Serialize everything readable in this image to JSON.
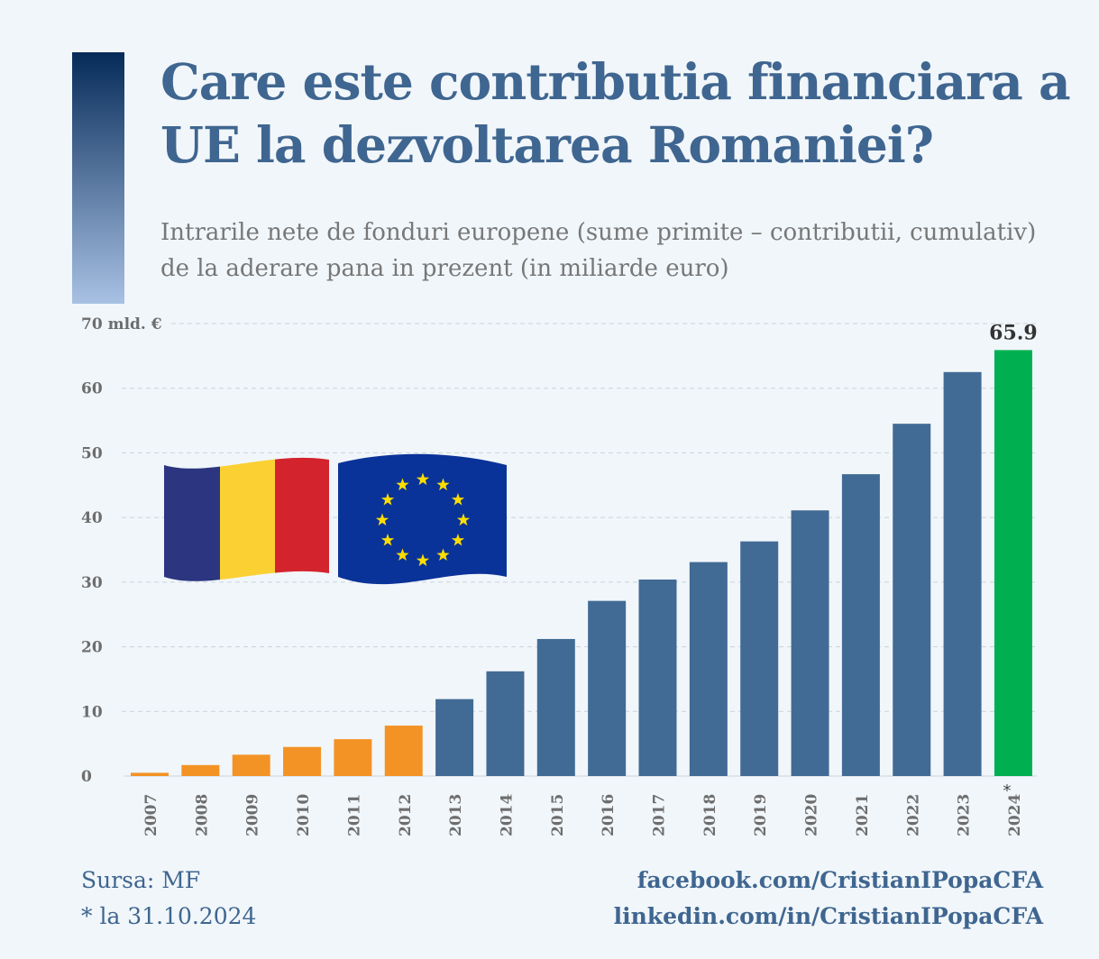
{
  "title": "Care este contributia financiara a UE la dezvoltarea Romaniei?",
  "subtitle": "Intrarile nete de fonduri europene (sume primite – contributii, cumulativ) de la aderare pana in prezent (in miliarde euro)",
  "footer": {
    "source": "Sursa: MF",
    "note": "* la 31.10.2024",
    "facebook": "facebook.com/CristianIPopaCFA",
    "linkedin": "linkedin.com/in/CristianIPopaCFA"
  },
  "colors": {
    "accent": "#3f6690",
    "pre_2013": "#f39325",
    "post_2013": "#416b94",
    "latest": "#00b050"
  },
  "icons": [
    "romania-flag",
    "eu-flag"
  ],
  "chart_data": {
    "type": "bar",
    "ylim": [
      0,
      70
    ],
    "yticks": [
      0,
      10,
      20,
      30,
      40,
      50,
      60,
      70
    ],
    "ytick_labels": [
      "0",
      "10",
      "20",
      "30",
      "40",
      "50",
      "60",
      "70 mld. €"
    ],
    "grid": true,
    "categories": [
      "2007",
      "2008",
      "2009",
      "2010",
      "2011",
      "2012",
      "2013",
      "2014",
      "2015",
      "2016",
      "2017",
      "2018",
      "2019",
      "2020",
      "2021",
      "2022",
      "2023",
      "2024"
    ],
    "category_labels": [
      "2007",
      "2008",
      "2009",
      "2010",
      "2011",
      "2012",
      "2013",
      "2014",
      "2015",
      "2016",
      "2017",
      "2018",
      "2019",
      "2020",
      "2021",
      "2022",
      "2023",
      "2024"
    ],
    "values": [
      0.5,
      1.7,
      3.3,
      4.5,
      5.7,
      7.8,
      11.9,
      16.2,
      21.2,
      27.1,
      30.4,
      33.1,
      36.3,
      41.1,
      46.7,
      54.5,
      62.5,
      65.9
    ],
    "data_labels": {
      "2024": "65.9"
    },
    "annotation": {
      "2024": "*"
    }
  }
}
